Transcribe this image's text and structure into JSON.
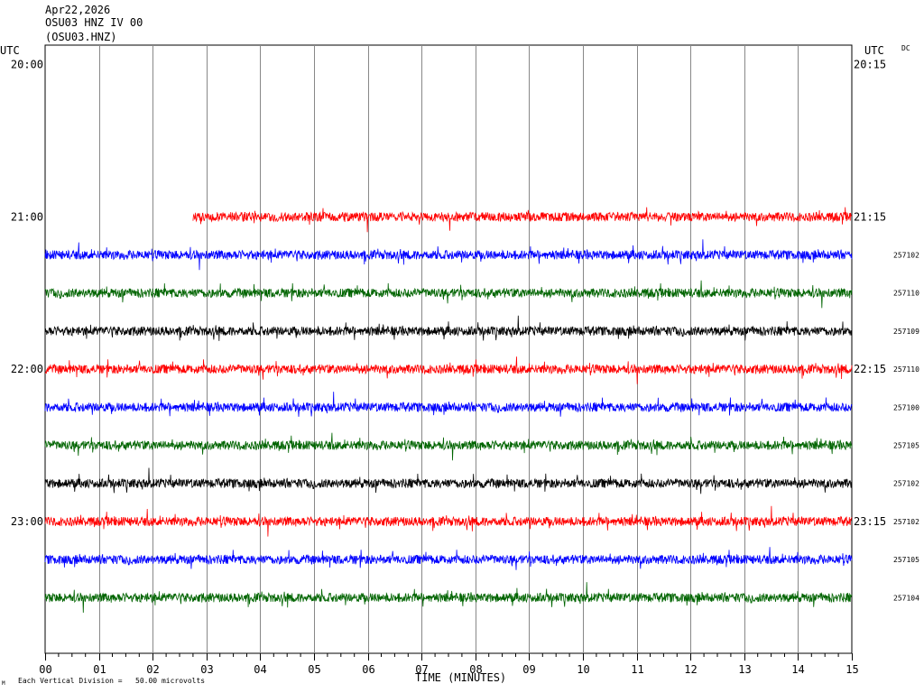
{
  "header": {
    "date": "Apr22,2026",
    "station": "OSU03 HNZ IV 00",
    "channel": "(OSU03.HNZ)"
  },
  "left_axis_title": "UTC",
  "right_axis_title": "UTC",
  "dc_label": "DC",
  "footer": {
    "scale_note": "Each Vertical Division =   50.00 microvolts",
    "corner_mark": "M"
  },
  "chart_data": {
    "type": "line",
    "xlabel": "TIME (MINUTES)",
    "xlim": [
      0,
      15
    ],
    "x_ticks": [
      "00",
      "01",
      "02",
      "03",
      "04",
      "05",
      "06",
      "07",
      "08",
      "09",
      "10",
      "11",
      "12",
      "13",
      "14",
      "15"
    ],
    "left_time_labels": [
      "20:00",
      "21:00",
      "22:00",
      "23:00"
    ],
    "right_time_labels": [
      "20:15",
      "21:15",
      "22:15",
      "23:15"
    ],
    "series_colors": [
      "#ff0000",
      "#0000ff",
      "#006400",
      "#000000"
    ],
    "traces": [
      {
        "row": 0,
        "color": "#ff0000",
        "start_minute": null,
        "amp_label": ""
      },
      {
        "row": 1,
        "color": "#0000ff",
        "start_minute": null,
        "amp_label": ""
      },
      {
        "row": 2,
        "color": "#006400",
        "start_minute": null,
        "amp_label": ""
      },
      {
        "row": 3,
        "color": "#000000",
        "start_minute": null,
        "amp_label": ""
      },
      {
        "row": 4,
        "color": "#ff0000",
        "start_minute": 2.75,
        "amp_label": ""
      },
      {
        "row": 5,
        "color": "#0000ff",
        "start_minute": 0,
        "amp_label": "257102"
      },
      {
        "row": 6,
        "color": "#006400",
        "start_minute": 0,
        "amp_label": "257110"
      },
      {
        "row": 7,
        "color": "#000000",
        "start_minute": 0,
        "amp_label": "257109"
      },
      {
        "row": 8,
        "color": "#ff0000",
        "start_minute": 0,
        "amp_label": "257110"
      },
      {
        "row": 9,
        "color": "#0000ff",
        "start_minute": 0,
        "amp_label": "257100"
      },
      {
        "row": 10,
        "color": "#006400",
        "start_minute": 0,
        "amp_label": "257105"
      },
      {
        "row": 11,
        "color": "#000000",
        "start_minute": 0,
        "amp_label": "257102"
      },
      {
        "row": 12,
        "color": "#ff0000",
        "start_minute": 0,
        "amp_label": "257102"
      },
      {
        "row": 13,
        "color": "#0000ff",
        "start_minute": 0,
        "amp_label": "257105"
      },
      {
        "row": 14,
        "color": "#006400",
        "start_minute": 0,
        "amp_label": "257104"
      }
    ]
  }
}
